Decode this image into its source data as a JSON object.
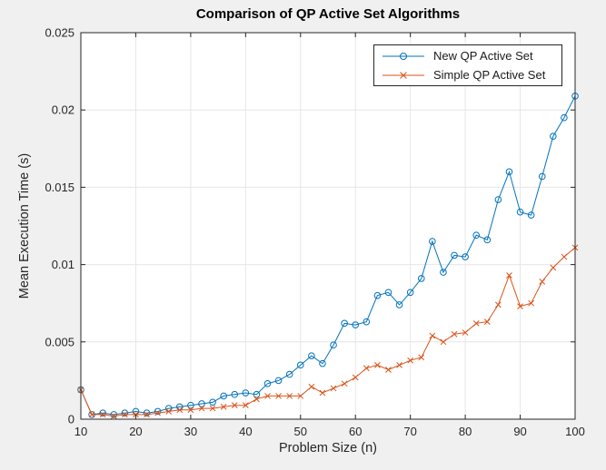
{
  "colors": {
    "figure_bg": "#f0f0f0",
    "plot_bg": "#ffffff",
    "grid": "#e6e6e6",
    "axis": "#262626",
    "blue": "#0072BD",
    "orange": "#D95319"
  },
  "chart_data": {
    "type": "line",
    "title": "Comparison of QP Active Set Algorithms",
    "xlabel": "Problem Size (n)",
    "ylabel": "Mean Execution Time (s)",
    "xlim": [
      10,
      100
    ],
    "ylim": [
      0,
      0.025
    ],
    "grid": true,
    "legend_position": "top-right-inside",
    "x_ticks": [
      10,
      20,
      30,
      40,
      50,
      60,
      70,
      80,
      90,
      100
    ],
    "y_ticks": [
      0,
      0.005,
      0.01,
      0.015,
      0.02,
      0.025
    ],
    "y_tick_labels": [
      "0",
      "0.005",
      "0.01",
      "0.015",
      "0.02",
      "0.025"
    ],
    "x": [
      10,
      12,
      14,
      16,
      18,
      20,
      22,
      24,
      26,
      28,
      30,
      32,
      34,
      36,
      38,
      40,
      42,
      44,
      46,
      48,
      50,
      52,
      54,
      56,
      58,
      60,
      62,
      64,
      66,
      68,
      70,
      72,
      74,
      76,
      78,
      80,
      82,
      84,
      86,
      88,
      90,
      92,
      94,
      96,
      98,
      100
    ],
    "series": [
      {
        "name": "New QP Active Set",
        "color": "#0072BD",
        "marker": "circle",
        "values": [
          0.0019,
          0.0003,
          0.0004,
          0.0003,
          0.0004,
          0.0005,
          0.0004,
          0.0005,
          0.0007,
          0.0008,
          0.0009,
          0.001,
          0.0011,
          0.0015,
          0.0016,
          0.0017,
          0.0016,
          0.0023,
          0.0025,
          0.0029,
          0.0035,
          0.0041,
          0.0036,
          0.0048,
          0.0062,
          0.0061,
          0.0063,
          0.008,
          0.0082,
          0.0074,
          0.0082,
          0.0091,
          0.0115,
          0.0095,
          0.0106,
          0.0105,
          0.0119,
          0.0116,
          0.0142,
          0.016,
          0.0134,
          0.0132,
          0.0157,
          0.0183,
          0.0195,
          0.0209
        ]
      },
      {
        "name": "Simple QP Active Set",
        "color": "#D95319",
        "marker": "x",
        "values": [
          0.0019,
          0.0003,
          0.0003,
          0.0002,
          0.0003,
          0.0003,
          0.0003,
          0.0004,
          0.0005,
          0.0006,
          0.0006,
          0.0007,
          0.0007,
          0.0008,
          0.0009,
          0.0009,
          0.0013,
          0.0015,
          0.0015,
          0.0015,
          0.0015,
          0.0021,
          0.0017,
          0.002,
          0.0023,
          0.0027,
          0.0033,
          0.0035,
          0.0032,
          0.0035,
          0.0038,
          0.004,
          0.0054,
          0.005,
          0.0055,
          0.0056,
          0.0062,
          0.0063,
          0.0074,
          0.0093,
          0.0073,
          0.0075,
          0.0089,
          0.0098,
          0.0105,
          0.0111
        ]
      }
    ]
  }
}
